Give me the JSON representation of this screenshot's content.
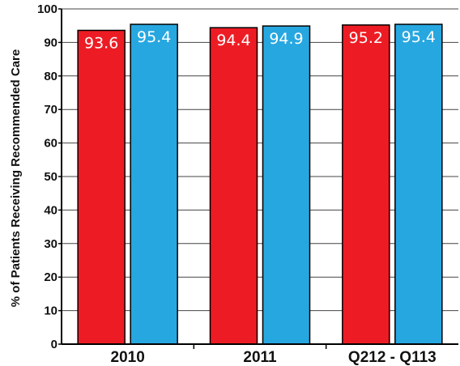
{
  "chart_data": {
    "type": "bar",
    "title": "",
    "xlabel": "",
    "ylabel": "% of Patients Receiving Recommended Care",
    "categories": [
      "2010",
      "2011",
      "Q212 - Q113"
    ],
    "series": [
      {
        "values": [
          93.6,
          94.4,
          95.2
        ],
        "labels": [
          "93.6",
          "94.4",
          "95.2"
        ],
        "color": "#ED1C24"
      },
      {
        "values": [
          95.4,
          94.9,
          95.4
        ],
        "labels": [
          "95.4",
          "94.9",
          "95.4"
        ],
        "color": "#27A7E0"
      }
    ],
    "ylim": [
      0,
      100
    ],
    "yticks": [
      "0",
      "10",
      "20",
      "30",
      "40",
      "50",
      "60",
      "70",
      "80",
      "90",
      "100"
    ],
    "grid": true,
    "legend": "none"
  }
}
